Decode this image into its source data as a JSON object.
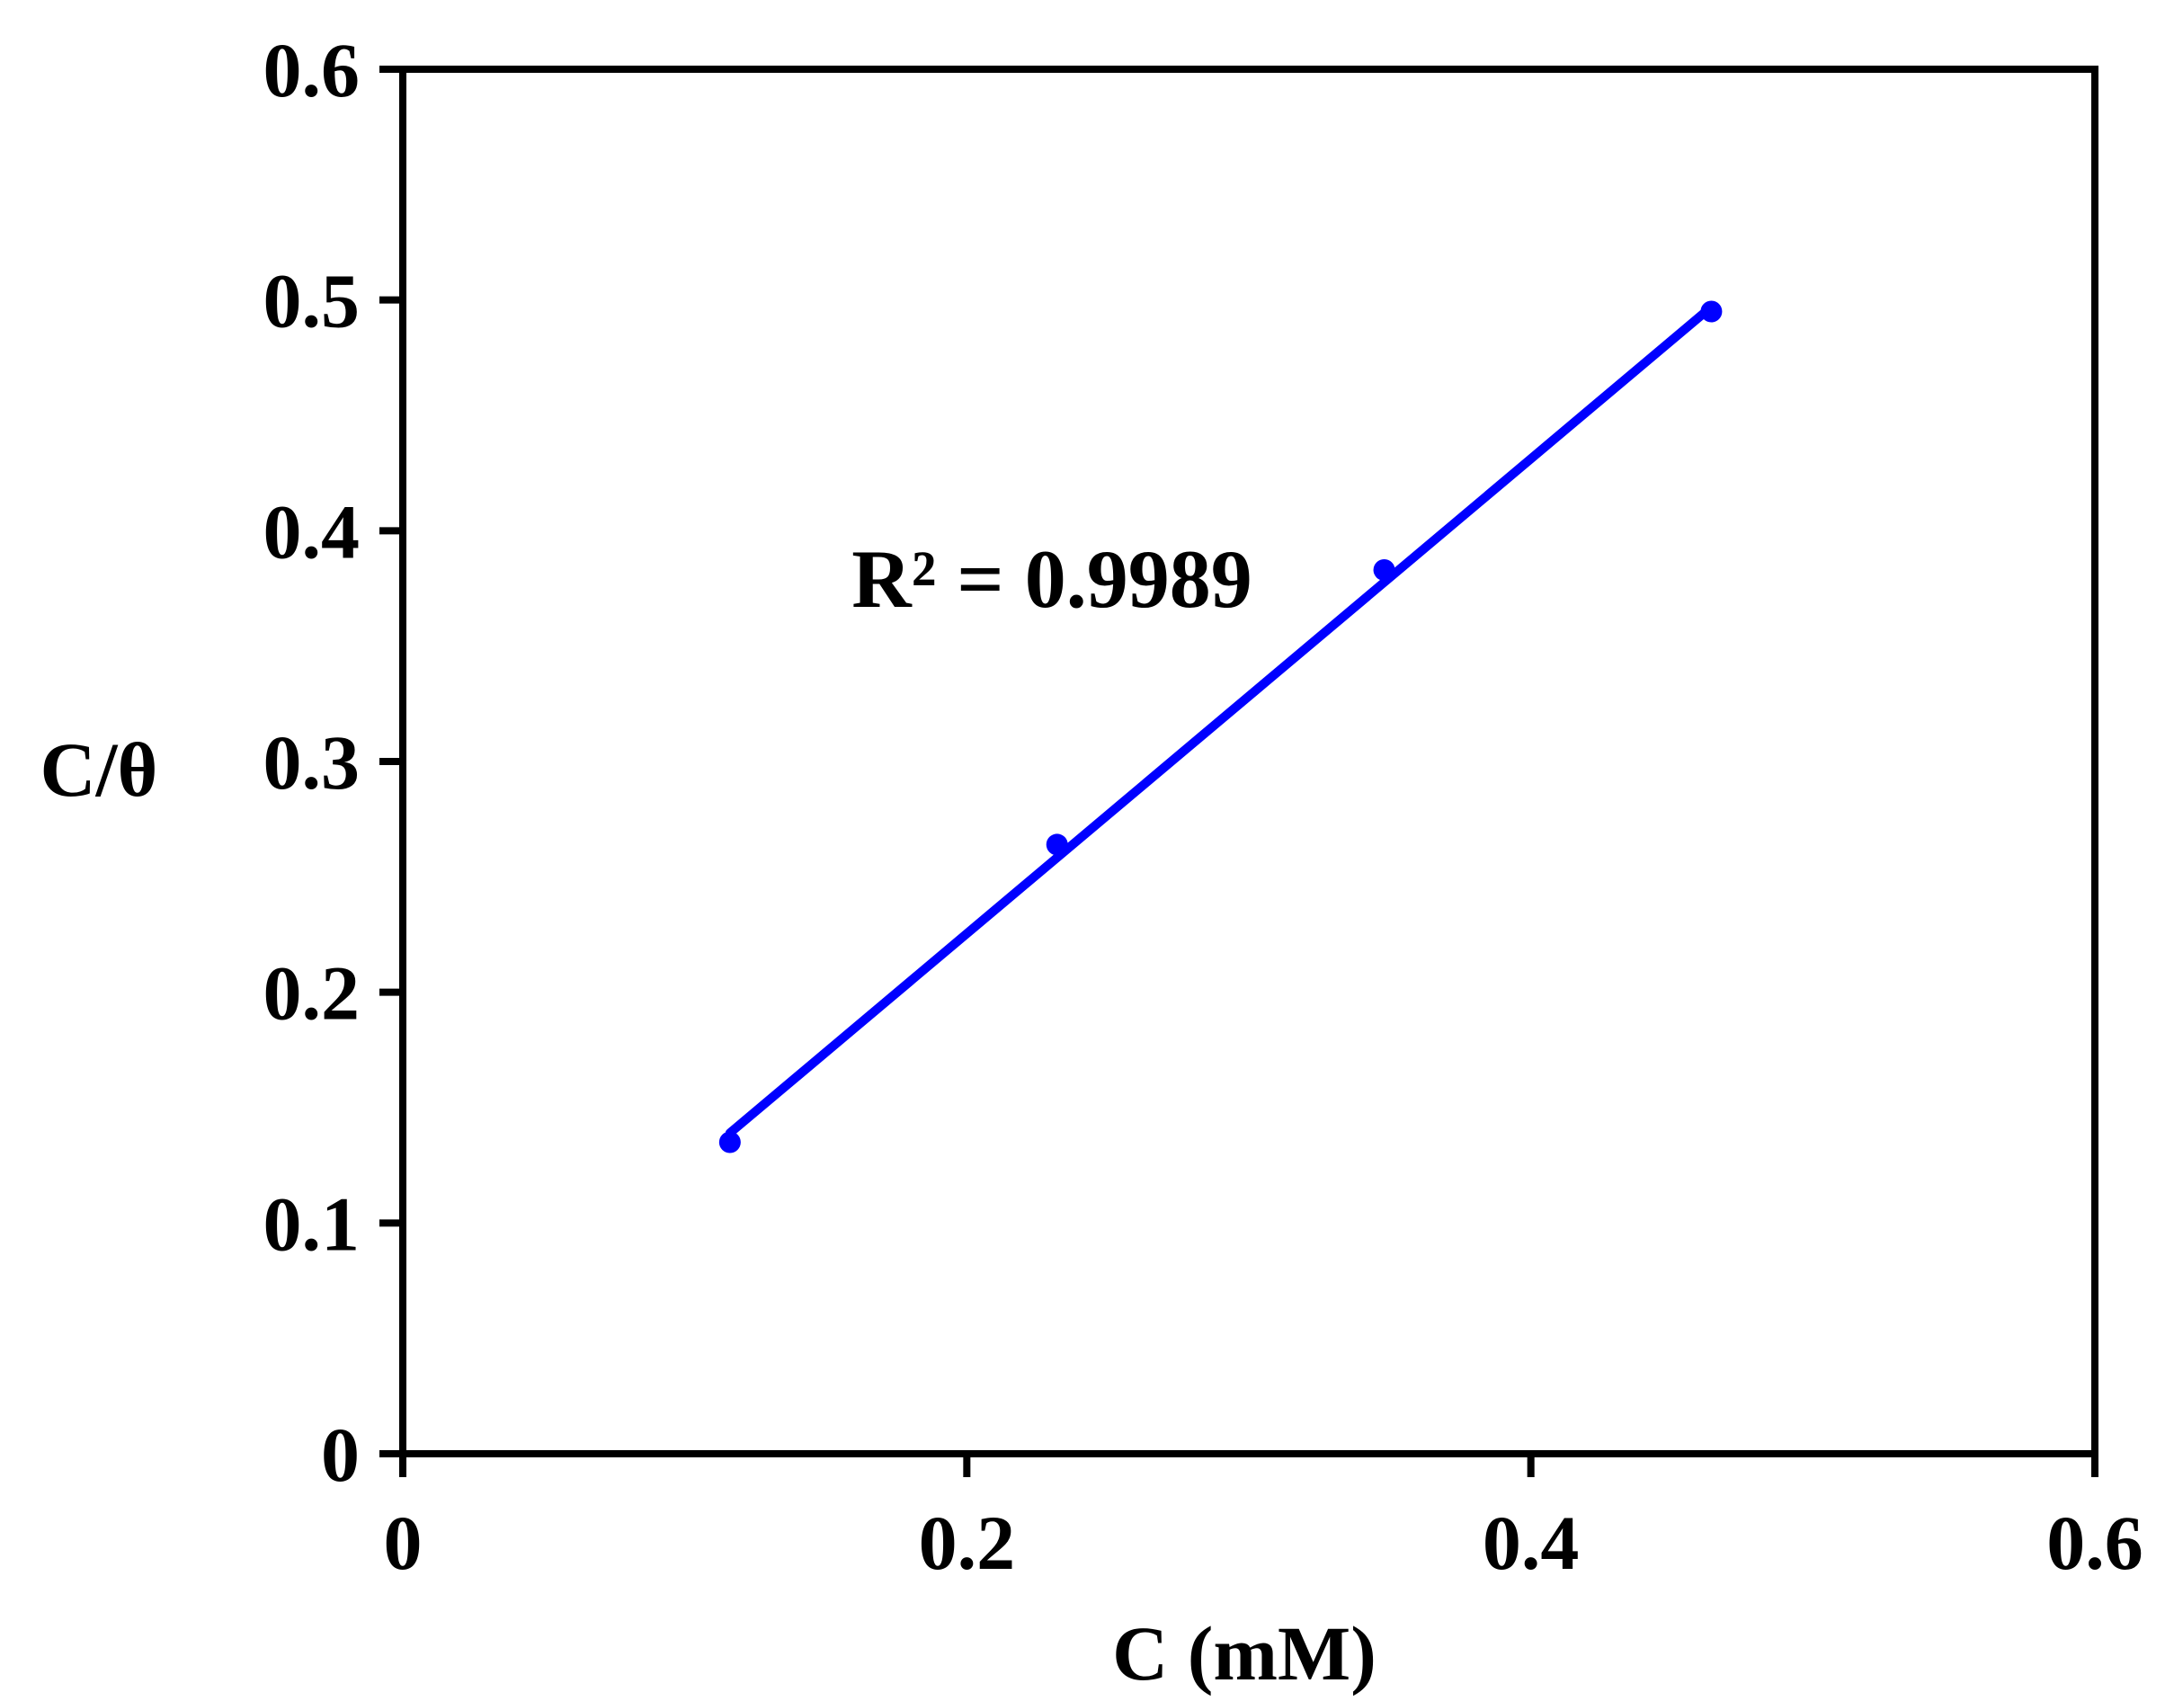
{
  "chart_data": {
    "type": "scatter",
    "title": "",
    "xlabel": "C (mM)",
    "ylabel": "C/θ",
    "xlim": [
      0,
      0.6
    ],
    "ylim": [
      0,
      0.6
    ],
    "x_ticks": [
      "0",
      "0.2",
      "0.4",
      "0.6"
    ],
    "y_ticks": [
      "0",
      "0.1",
      "0.2",
      "0.3",
      "0.4",
      "0.5",
      "0.6"
    ],
    "grid": false,
    "legend": "none",
    "series": [
      {
        "points": [
          {
            "x": 0.116,
            "y": 0.135
          },
          {
            "x": 0.232,
            "y": 0.264
          },
          {
            "x": 0.348,
            "y": 0.383
          },
          {
            "x": 0.464,
            "y": 0.495
          }
        ],
        "color": "#0000ff",
        "trendline": {
          "type": "linear",
          "x_range": [
            0.116,
            0.464
          ],
          "y_range": [
            0.139,
            0.497
          ]
        }
      }
    ],
    "annotations": [
      "R² = 0.9989"
    ]
  },
  "colors": {
    "series": "#0000ff",
    "axis": "#000000",
    "background": "#ffffff"
  }
}
